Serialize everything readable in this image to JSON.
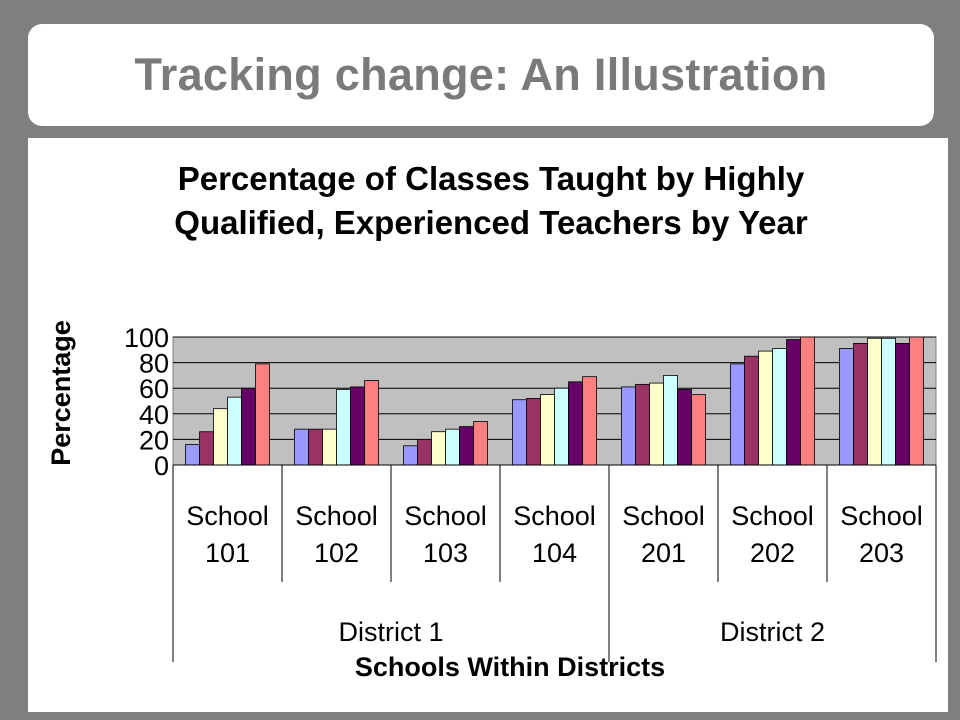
{
  "slide": {
    "title": "Tracking change: An Illustration"
  },
  "chart_data": {
    "type": "bar",
    "title_lines": [
      "Percentage of Classes Taught by Highly",
      "Qualified, Experienced Teachers by Year"
    ],
    "ylabel": "Percentage",
    "xlabel": "Schools Within Districts",
    "ylim": [
      0,
      100
    ],
    "yticks": [
      0,
      20,
      40,
      60,
      80,
      100
    ],
    "grid": true,
    "legend": "none",
    "categories": [
      {
        "line1": "School",
        "line2": "101"
      },
      {
        "line1": "School",
        "line2": "102"
      },
      {
        "line1": "School",
        "line2": "103"
      },
      {
        "line1": "School",
        "line2": "104"
      },
      {
        "line1": "School",
        "line2": "201"
      },
      {
        "line1": "School",
        "line2": "202"
      },
      {
        "line1": "School",
        "line2": "203"
      }
    ],
    "groups": [
      {
        "label": "District 1",
        "span": 4
      },
      {
        "label": "District 2",
        "span": 3
      }
    ],
    "series": [
      {
        "color": "#9999ff",
        "values": [
          16,
          28,
          15,
          51,
          61,
          79,
          91
        ]
      },
      {
        "color": "#993366",
        "values": [
          26,
          28,
          20,
          52,
          63,
          85,
          95
        ]
      },
      {
        "color": "#ffffcc",
        "values": [
          44,
          28,
          26,
          55,
          64,
          89,
          99
        ]
      },
      {
        "color": "#ccffff",
        "values": [
          53,
          59,
          28,
          60,
          70,
          91,
          99
        ]
      },
      {
        "color": "#660066",
        "values": [
          60,
          61,
          30,
          65,
          59,
          98,
          95
        ]
      },
      {
        "color": "#ff8080",
        "values": [
          79,
          66,
          34,
          69,
          55,
          100,
          100
        ]
      }
    ]
  }
}
